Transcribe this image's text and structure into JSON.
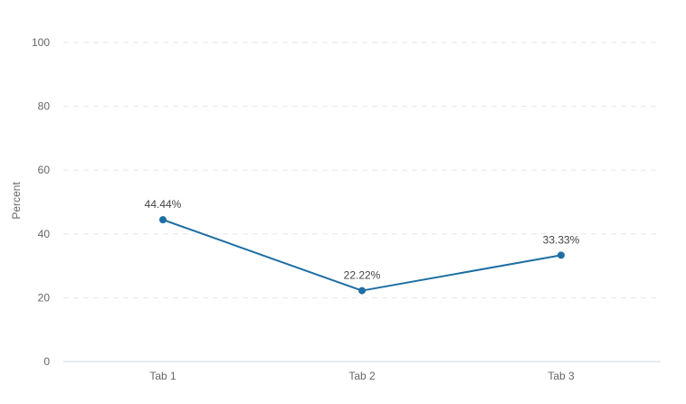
{
  "chart_data": {
    "type": "line",
    "categories": [
      "Tab 1",
      "Tab 2",
      "Tab 3"
    ],
    "series": [
      {
        "values": [
          44.44,
          22.22,
          33.33
        ],
        "data_labels": [
          "44.44%",
          "22.22%",
          "33.33%"
        ],
        "color": "#1f6fa3"
      }
    ],
    "ylabel": "Percent",
    "ylim": [
      0,
      100
    ],
    "yticks": [
      0,
      20,
      40,
      60,
      80,
      100
    ],
    "grid": true,
    "legend": "none"
  },
  "colors": {
    "line": "#1f6fa3",
    "grid": "#e6e6e6",
    "axis": "#cfd8dc",
    "tick_text": "#666666"
  }
}
